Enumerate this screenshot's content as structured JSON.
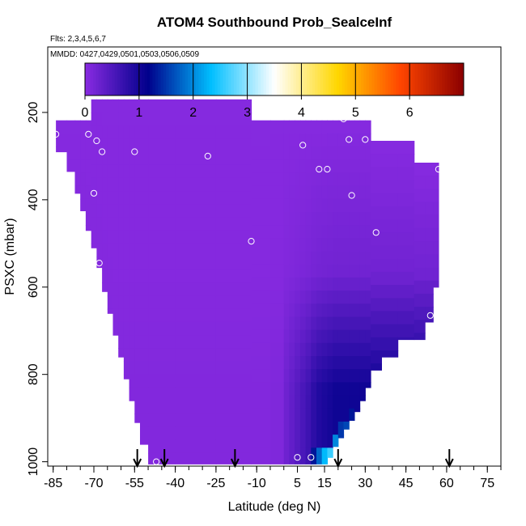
{
  "chart_data": {
    "type": "heatmap",
    "title": "ATOM4 Southbound Prob_SealceInf",
    "flights_note": "Flts: 2,3,4,5,6,7",
    "dates_note": "MMDD: 0427,0429,0501,0503,0506,0509",
    "xlabel": "Latitude (deg N)",
    "ylabel": "PSXC (mbar)",
    "xlim": [
      -87,
      80
    ],
    "ylim": [
      1010,
      50
    ],
    "x_ticks": [
      -85,
      -70,
      -55,
      -40,
      -25,
      -10,
      5,
      15,
      30,
      45,
      60,
      75
    ],
    "y_ticks": [
      200,
      400,
      600,
      800,
      1000
    ],
    "colorbar": {
      "range": [
        0,
        7
      ],
      "ticks": [
        0,
        1,
        2,
        3,
        4,
        5,
        6
      ],
      "colors": [
        "#8a2be2",
        "#00008b",
        "#00bfff",
        "#ffffff",
        "#ffd700",
        "#ff4500",
        "#8b0000"
      ]
    },
    "profile_markers_latitude": [
      -54,
      -44,
      -18,
      20,
      61
    ],
    "sample_points": [
      {
        "x": -84,
        "p": 250
      },
      {
        "x": -73,
        "p": 210
      },
      {
        "x": -72,
        "p": 250
      },
      {
        "x": -69,
        "p": 265
      },
      {
        "x": -67,
        "p": 290
      },
      {
        "x": -55,
        "p": 290
      },
      {
        "x": -28,
        "p": 300
      },
      {
        "x": -5,
        "p": 210
      },
      {
        "x": -70,
        "p": 385
      },
      {
        "x": -68,
        "p": 545
      },
      {
        "x": -12,
        "p": 495
      },
      {
        "x": 7,
        "p": 275
      },
      {
        "x": 13,
        "p": 330
      },
      {
        "x": 16,
        "p": 330
      },
      {
        "x": 22,
        "p": 215
      },
      {
        "x": 24,
        "p": 262
      },
      {
        "x": 25,
        "p": 390
      },
      {
        "x": 30,
        "p": 262
      },
      {
        "x": 34,
        "p": 475
      },
      {
        "x": 57,
        "p": 330
      },
      {
        "x": 54,
        "p": 665
      },
      {
        "x": 5,
        "p": 990
      },
      {
        "x": 10,
        "p": 990
      },
      {
        "x": -47,
        "p": 1000
      },
      {
        "x": 18,
        "p": 1000
      }
    ],
    "columns": [
      {
        "x0": -84,
        "x1": -80,
        "ptop": 218,
        "pbot": 290,
        "max": 0.05
      },
      {
        "x0": -80,
        "x1": -77,
        "ptop": 218,
        "pbot": 335,
        "max": 0.05
      },
      {
        "x0": -77,
        "x1": -75,
        "ptop": 218,
        "pbot": 385,
        "max": 0.1
      },
      {
        "x0": -75,
        "x1": -73,
        "ptop": 218,
        "pbot": 425,
        "max": 0.12
      },
      {
        "x0": -73,
        "x1": -71,
        "ptop": 218,
        "pbot": 470,
        "max": 0.1
      },
      {
        "x0": -71,
        "x1": -69,
        "ptop": 170,
        "pbot": 510,
        "max": 0.08
      },
      {
        "x0": -69,
        "x1": -67,
        "ptop": 170,
        "pbot": 555,
        "max": 0.06
      },
      {
        "x0": -67,
        "x1": -65,
        "ptop": 170,
        "pbot": 610,
        "max": 0.05
      },
      {
        "x0": -65,
        "x1": -63,
        "ptop": 170,
        "pbot": 660,
        "max": 0.04
      },
      {
        "x0": -63,
        "x1": -61,
        "ptop": 170,
        "pbot": 710,
        "max": 0.03
      },
      {
        "x0": -61,
        "x1": -59,
        "ptop": 170,
        "pbot": 760,
        "max": 0.03
      },
      {
        "x0": -59,
        "x1": -57,
        "ptop": 170,
        "pbot": 810,
        "max": 0.03
      },
      {
        "x0": -57,
        "x1": -55,
        "ptop": 170,
        "pbot": 860,
        "max": 0.03
      },
      {
        "x0": -55,
        "x1": -53,
        "ptop": 170,
        "pbot": 910,
        "max": 0.03
      },
      {
        "x0": -53,
        "x1": -50,
        "ptop": 170,
        "pbot": 960,
        "max": 0.03
      },
      {
        "x0": -50,
        "x1": -40,
        "ptop": 170,
        "pbot": 1005,
        "max": 0.03
      },
      {
        "x0": -40,
        "x1": -25,
        "ptop": 170,
        "pbot": 1005,
        "max": 0.03
      },
      {
        "x0": -25,
        "x1": -12,
        "ptop": 170,
        "pbot": 1005,
        "max": 0.03
      },
      {
        "x0": -12,
        "x1": -5,
        "ptop": 218,
        "pbot": 1005,
        "max": 0.03
      },
      {
        "x0": -5,
        "x1": 0,
        "ptop": 218,
        "pbot": 1005,
        "max": 0.05
      },
      {
        "x0": 0,
        "x1": 2,
        "ptop": 218,
        "pbot": 1005,
        "max": 0.2
      },
      {
        "x0": 2,
        "x1": 4,
        "ptop": 218,
        "pbot": 1005,
        "max": 0.3
      },
      {
        "x0": 4,
        "x1": 6,
        "ptop": 218,
        "pbot": 1005,
        "max": 0.4
      },
      {
        "x0": 6,
        "x1": 8,
        "ptop": 218,
        "pbot": 1005,
        "max": 0.5
      },
      {
        "x0": 8,
        "x1": 10,
        "ptop": 218,
        "pbot": 1005,
        "max": 0.6
      },
      {
        "x0": 10,
        "x1": 12,
        "ptop": 218,
        "pbot": 1005,
        "max": 0.75,
        "bright": 1.3
      },
      {
        "x0": 12,
        "x1": 14,
        "ptop": 218,
        "pbot": 1005,
        "max": 0.85,
        "bright": 1.8
      },
      {
        "x0": 14,
        "x1": 16,
        "ptop": 218,
        "pbot": 1005,
        "max": 0.9,
        "bright": 2.3
      },
      {
        "x0": 16,
        "x1": 18,
        "ptop": 218,
        "pbot": 990,
        "max": 0.95,
        "bright": 2.6
      },
      {
        "x0": 18,
        "x1": 20,
        "ptop": 218,
        "pbot": 965,
        "max": 1.0,
        "bright": 2.0
      },
      {
        "x0": 20,
        "x1": 22,
        "ptop": 218,
        "pbot": 945,
        "max": 1.0,
        "bright": 1.5
      },
      {
        "x0": 22,
        "x1": 24,
        "ptop": 218,
        "pbot": 925,
        "max": 1.0,
        "bright": 1.6
      },
      {
        "x0": 24,
        "x1": 26,
        "ptop": 218,
        "pbot": 905,
        "max": 1.0,
        "bright": 1.3
      },
      {
        "x0": 26,
        "x1": 28,
        "ptop": 218,
        "pbot": 885,
        "max": 1.0
      },
      {
        "x0": 28,
        "x1": 30,
        "ptop": 218,
        "pbot": 860,
        "max": 1.0
      },
      {
        "x0": 30,
        "x1": 32,
        "ptop": 218,
        "pbot": 830,
        "max": 1.0
      },
      {
        "x0": 32,
        "x1": 36,
        "ptop": 265,
        "pbot": 790,
        "max": 1.0
      },
      {
        "x0": 36,
        "x1": 42,
        "ptop": 265,
        "pbot": 760,
        "max": 1.0
      },
      {
        "x0": 42,
        "x1": 48,
        "ptop": 265,
        "pbot": 720,
        "max": 1.0
      },
      {
        "x0": 48,
        "x1": 52,
        "ptop": 315,
        "pbot": 720,
        "max": 1.0
      },
      {
        "x0": 52,
        "x1": 55,
        "ptop": 315,
        "pbot": 680,
        "max": 1.0
      },
      {
        "x0": 55,
        "x1": 57,
        "ptop": 315,
        "pbot": 600,
        "max": 1.0
      }
    ]
  }
}
